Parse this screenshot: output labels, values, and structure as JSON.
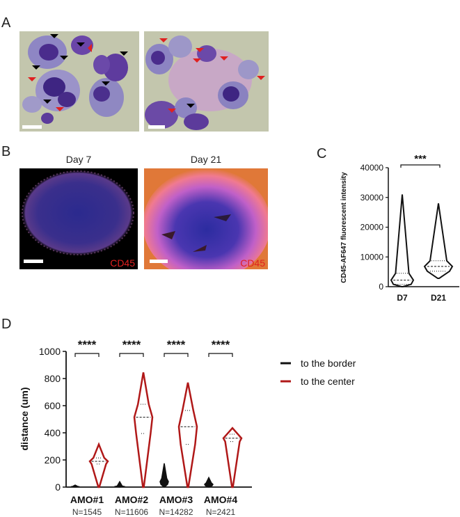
{
  "panel_labels": {
    "a": "A",
    "b": "B",
    "c": "C",
    "d": "D"
  },
  "panel_b": {
    "left_title": "Day 7",
    "right_title": "Day 21",
    "left_marker": "CD45",
    "right_marker": "CD45"
  },
  "colors": {
    "border_series": "#111111",
    "center_series": "#b01818",
    "marker_text": "#e02020"
  },
  "chart_data": [
    {
      "type": "violin",
      "categories": [
        "D7",
        "D21"
      ],
      "ylabel": "CD45-AF647 fluorescent intensity",
      "ylim": [
        0,
        40000
      ],
      "yticks": [
        "0",
        "10000",
        "20000",
        "30000",
        "40000"
      ],
      "significance": "***",
      "series": [
        {
          "values": [
            {
              "category": "D7",
              "min": 0,
              "q1": 800,
              "median": 2200,
              "q3": 4500,
              "max": 31000
            },
            {
              "category": "D21",
              "min": 2800,
              "q1": 5200,
              "median": 6800,
              "q3": 8700,
              "max": 28000
            }
          ]
        }
      ]
    },
    {
      "type": "violin",
      "categories": [
        "AMO#1",
        "AMO#2",
        "AMO#3",
        "AMO#4"
      ],
      "counts": [
        "N=1545",
        "N=11606",
        "N=14282",
        "N=2421"
      ],
      "ylabel": "distance  (um)",
      "ylim": [
        0,
        1000
      ],
      "yticks": [
        "0",
        "200",
        "400",
        "600",
        "800",
        "1000"
      ],
      "significance": [
        "****",
        "****",
        "****",
        "****"
      ],
      "series": [
        {
          "name": "to the border",
          "values": [
            {
              "category": "AMO#1",
              "max": 15,
              "median": 3
            },
            {
              "category": "AMO#2",
              "max": 40,
              "median": 5
            },
            {
              "category": "AMO#3",
              "max": 175,
              "median": 40
            },
            {
              "category": "AMO#4",
              "max": 70,
              "median": 20
            }
          ]
        },
        {
          "name": "to the center",
          "values": [
            {
              "category": "AMO#1",
              "min": 0,
              "q1": 170,
              "median": 190,
              "q3": 215,
              "max": 315
            },
            {
              "category": "AMO#2",
              "min": 0,
              "q1": 395,
              "median": 515,
              "q3": 610,
              "max": 845
            },
            {
              "category": "AMO#3",
              "min": 0,
              "q1": 315,
              "median": 445,
              "q3": 565,
              "max": 770
            },
            {
              "category": "AMO#4",
              "min": 0,
              "q1": 335,
              "median": 360,
              "q3": 390,
              "max": 435
            }
          ]
        }
      ]
    }
  ]
}
